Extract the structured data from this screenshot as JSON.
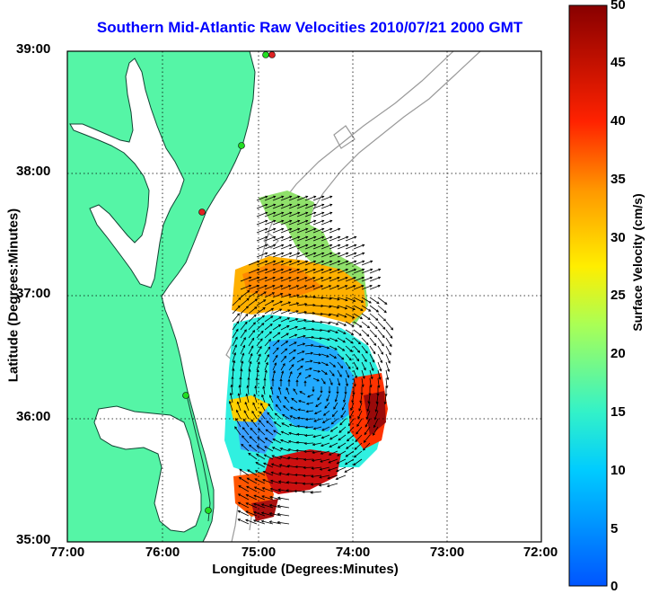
{
  "title": "Southern Mid-Atlantic Raw Velocities 2010/07/21 2000 GMT",
  "x_axis": {
    "label": "Longitude (Degrees:Minutes)",
    "ticks": [
      "77:00",
      "76:00",
      "75:00",
      "74:00",
      "73:00",
      "72:00"
    ]
  },
  "y_axis": {
    "label": "Latitude (Degrees:Minutes)",
    "ticks": [
      "39:00",
      "38:00",
      "37:00",
      "36:00",
      "35:00"
    ]
  },
  "colorbar": {
    "label": "Surface Velocity (cm/s)",
    "ticks": [
      "50",
      "45",
      "40",
      "35",
      "30",
      "25",
      "20",
      "15",
      "10",
      "5",
      "0"
    ],
    "min": 0,
    "max": 50,
    "colormap": "jet"
  },
  "colors": {
    "land": "#55f5a6",
    "title": "#0000ff",
    "grid": "#000000",
    "bathymetry": "#9a9a9a",
    "station_green": "#22dd22",
    "station_red": "#dd2222"
  },
  "chart_data": {
    "type": "map",
    "lon_range": [
      -77,
      -72
    ],
    "lat_range": [
      35,
      39
    ],
    "grid": true,
    "field": "surface current vectors colored by speed",
    "eddy_center": [
      -74.3,
      36.1
    ]
  }
}
